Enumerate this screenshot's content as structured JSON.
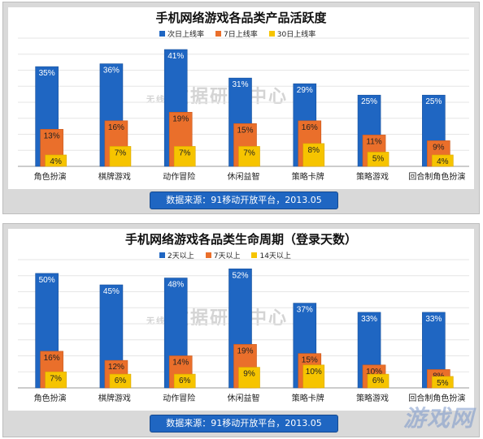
{
  "charts": [
    {
      "title": "手机网络游戏各品类产品活跃度",
      "source": "数据来源：91移动开放平台，2013.05",
      "watermark_small": "无线",
      "watermark_big": "数据研究中心"
    },
    {
      "title": "手机网络游戏各品类生命周期（登录天数）",
      "source": "数据来源：91移动开放平台，2013.05",
      "watermark_small": "无线",
      "watermark_big": "数据研究中心"
    }
  ],
  "corner_logo": "游戏网",
  "chart_data": [
    {
      "type": "bar",
      "title": "手机网络游戏各品类产品活跃度",
      "categories": [
        "角色扮演",
        "棋牌游戏",
        "动作冒险",
        "休闲益智",
        "策略卡牌",
        "策略游戏",
        "回合制角色扮演"
      ],
      "series": [
        {
          "name": "次日上线率",
          "values": [
            35,
            36,
            41,
            31,
            29,
            25,
            25
          ],
          "labels": [
            "35%",
            "36%",
            "41%",
            "31%",
            "29%",
            "25%",
            "25%"
          ],
          "color": "#1f66c2"
        },
        {
          "name": "7日上线率",
          "values": [
            13,
            16,
            19,
            15,
            16,
            11,
            9
          ],
          "labels": [
            "13%",
            "16%",
            "19%",
            "15%",
            "16%",
            "11%",
            "9%"
          ],
          "color": "#ea6f2b"
        },
        {
          "name": "30日上线率",
          "values": [
            4,
            7,
            7,
            7,
            8,
            5,
            4
          ],
          "labels": [
            "4%",
            "7%",
            "7%",
            "7%",
            "8%",
            "5%",
            "4%"
          ],
          "color": "#f6c400"
        }
      ],
      "ylim": [
        0,
        45
      ],
      "legend": "top-center"
    },
    {
      "type": "bar",
      "title": "手机网络游戏各品类生命周期（登录天数）",
      "categories": [
        "角色扮演",
        "棋牌游戏",
        "动作冒险",
        "休闲益智",
        "策略卡牌",
        "策略游戏",
        "回合制角色扮演"
      ],
      "series": [
        {
          "name": "2天以上",
          "values": [
            50,
            45,
            48,
            52,
            37,
            33,
            33
          ],
          "labels": [
            "50%",
            "45%",
            "48%",
            "52%",
            "37%",
            "33%",
            "33%"
          ],
          "color": "#1f66c2"
        },
        {
          "name": "7天以上",
          "values": [
            16,
            12,
            14,
            19,
            15,
            10,
            8
          ],
          "labels": [
            "16%",
            "12%",
            "14%",
            "19%",
            "15%",
            "10%",
            "8%"
          ],
          "color": "#ea6f2b"
        },
        {
          "name": "14天以上",
          "values": [
            7,
            6,
            6,
            9,
            10,
            6,
            5
          ],
          "labels": [
            "7%",
            "6%",
            "6%",
            "9%",
            "10%",
            "6%",
            "5%"
          ],
          "color": "#f6c400"
        }
      ],
      "ylim": [
        0,
        56
      ],
      "legend": "top-center"
    }
  ]
}
